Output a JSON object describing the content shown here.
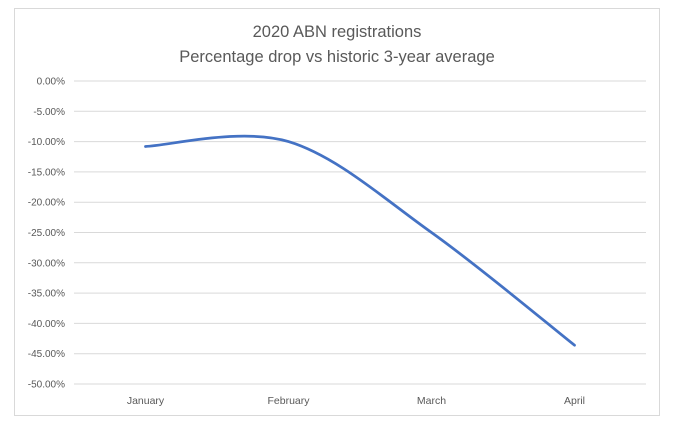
{
  "chart_data": {
    "type": "line",
    "title": "2020 ABN registrations",
    "subtitle": "Percentage drop vs historic 3-year average",
    "categories": [
      "January",
      "February",
      "March",
      "April"
    ],
    "series": [
      {
        "values": [
          -10.8,
          -10.0,
          -25.0,
          -43.6
        ],
        "color": "#4472c4",
        "smooth": true
      }
    ],
    "ylim": [
      -50,
      0
    ],
    "yticks": [
      0,
      -5,
      -10,
      -15,
      -20,
      -25,
      -30,
      -35,
      -40,
      -45,
      -50
    ],
    "ytick_labels": [
      "0.00%",
      "-5.00%",
      "-10.00%",
      "-15.00%",
      "-20.00%",
      "-25.00%",
      "-30.00%",
      "-35.00%",
      "-40.00%",
      "-45.00%",
      "-50.00%"
    ],
    "grid": true,
    "legend": "none",
    "xlabel": "",
    "ylabel": ""
  }
}
